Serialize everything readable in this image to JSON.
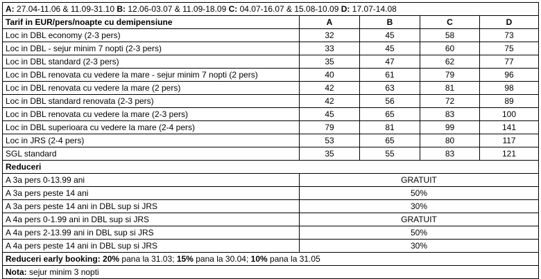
{
  "periods": [
    {
      "label": "A:",
      "dates": "27.04-11.06  & 11.09-31.10"
    },
    {
      "label": "B:",
      "dates": "12.06-03.07  & 11.09-18.09"
    },
    {
      "label": "C:",
      "dates": "04.07-16.07  & 15.08-10.09"
    },
    {
      "label": "D:",
      "dates": "17.07-14.08"
    }
  ],
  "table": {
    "header": [
      "Tarif in EUR/pers/noapte cu demipensiune",
      "A",
      "B",
      "C",
      "D"
    ],
    "rows": [
      [
        "Loc in DBL economy (2-3 pers)",
        32,
        45,
        58,
        73
      ],
      [
        "Loc in DBL - sejur minim 7 nopti (2-3 pers)",
        33,
        45,
        60,
        75
      ],
      [
        "Loc in DBL standard (2-3 pers)",
        35,
        47,
        62,
        77
      ],
      [
        "Loc in DBL renovata cu vedere la mare - sejur minim 7 nopti (2 pers)",
        40,
        61,
        79,
        96
      ],
      [
        "Loc in DBL renovata cu vedere la mare (2 pers)",
        42,
        63,
        81,
        98
      ],
      [
        "Loc in DBL standard renovata (2-3 pers)",
        42,
        56,
        72,
        89
      ],
      [
        "Loc in DBL renovata cu vedere la mare (2-3 pers)",
        45,
        65,
        83,
        100
      ],
      [
        "Loc in DBL superioara cu vedere la mare (2-4 pers)",
        79,
        81,
        99,
        141
      ],
      [
        "Loc in JRS (2-4 pers)",
        53,
        65,
        80,
        117
      ],
      [
        "SGL standard",
        35,
        55,
        83,
        121
      ]
    ]
  },
  "reductions": {
    "title": "Reduceri",
    "rows": [
      [
        "A 3a pers 0-13.99 ani",
        "GRATUIT"
      ],
      [
        "A 3a pers peste 14 ani",
        "50%"
      ],
      [
        "A 3a pers peste 14 ani in DBL sup si JRS",
        "30%"
      ],
      [
        "A 4a pers 0-1.99 ani in DBL sup si JRS",
        "GRATUIT"
      ],
      [
        "A 4a pers 2-13.99 ani in DBL sup si JRS",
        "50%"
      ],
      [
        "A 4a pers peste 14 ani in DBL sup si JRS",
        "30%"
      ]
    ]
  },
  "early_booking": {
    "title": "Reduceri early booking:",
    "items": [
      {
        "percent": "20%",
        "text": "pana la 31.03;"
      },
      {
        "percent": "15%",
        "text": "pana la 30.04;"
      },
      {
        "percent": "10%",
        "text": "pana la 31.05"
      }
    ]
  },
  "note": {
    "label": "Nota:",
    "text": "sejur minim 3 nopti"
  }
}
